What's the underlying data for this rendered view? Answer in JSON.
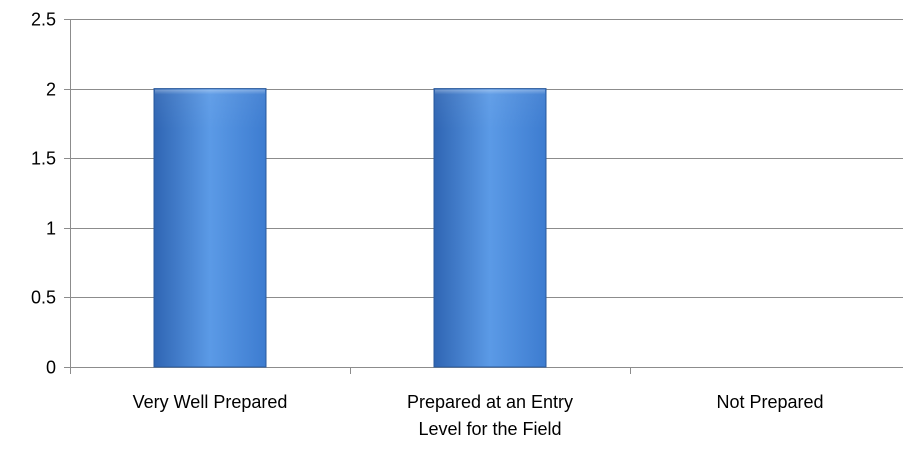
{
  "chart_data": {
    "type": "bar",
    "categories": [
      [
        "Very Well Prepared"
      ],
      [
        "Prepared at an Entry",
        "Level for the Field"
      ],
      [
        "Not Prepared"
      ]
    ],
    "values": [
      2,
      2,
      0
    ],
    "ylim": [
      0,
      2.5
    ],
    "yticks": [
      "0",
      "0.5",
      "1",
      "1.5",
      "2",
      "2.5"
    ],
    "grid": true,
    "legend": "none",
    "colors": {
      "bar_light": "#5b9ae6",
      "bar_mid": "#3d7cd0",
      "bar_dark": "#2f65b3",
      "bar_stroke": "#2a5a9c",
      "grid": "#8c8c8c",
      "axis": "#8c8c8c"
    }
  }
}
